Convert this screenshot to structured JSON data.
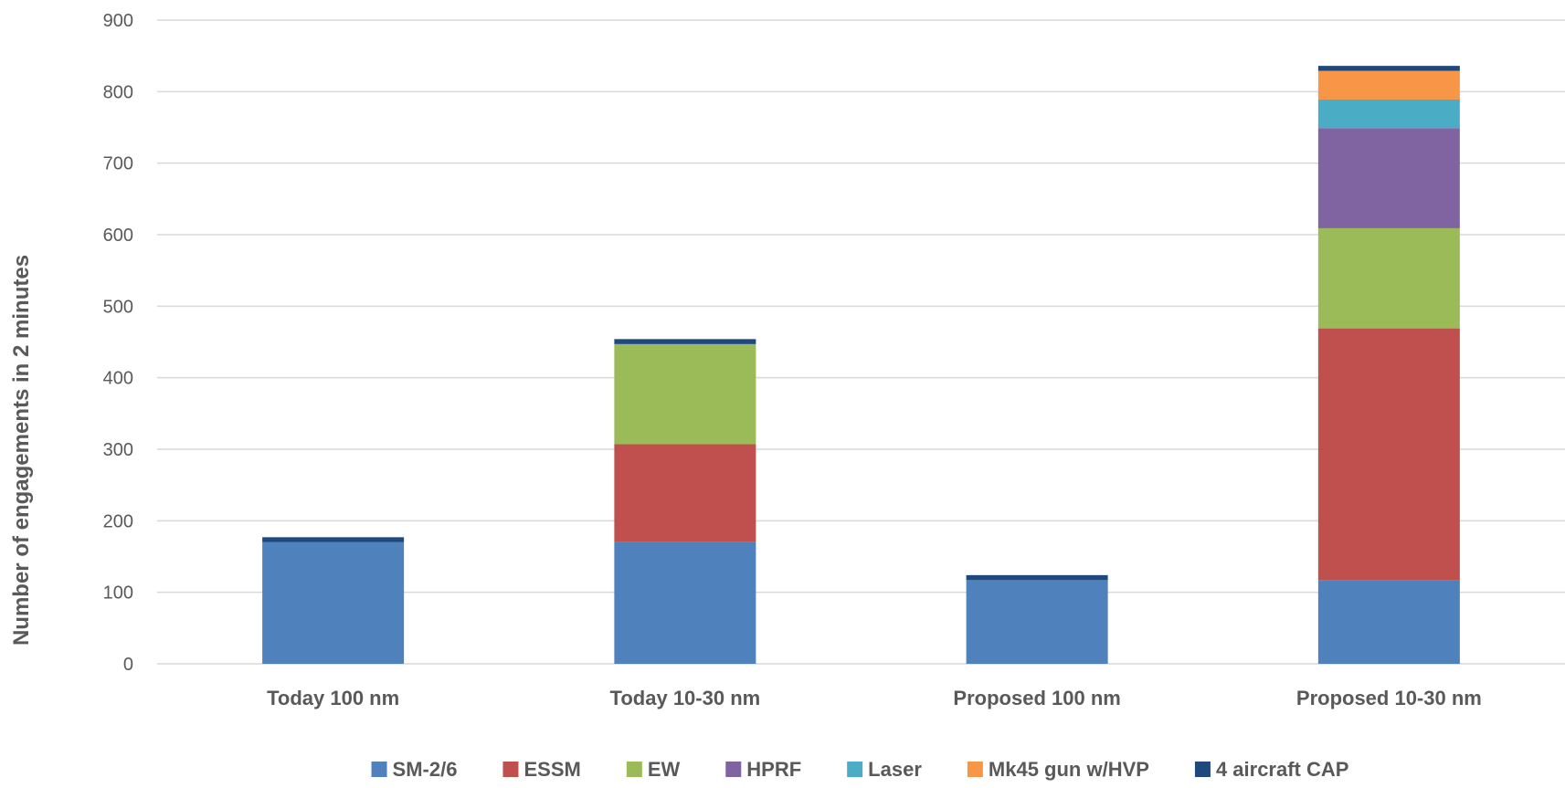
{
  "chart_data": {
    "type": "bar",
    "stacked": true,
    "title": "",
    "xlabel": "",
    "ylabel": "Number of engagements in 2 minutes",
    "ylim": [
      0,
      900
    ],
    "yticks": [
      0,
      100,
      200,
      300,
      400,
      500,
      600,
      700,
      800,
      900
    ],
    "grid": true,
    "legend_position": "bottom",
    "categories": [
      "Today 100 nm",
      "Today 10-30 nm",
      "Proposed 100 nm",
      "Proposed 10-30 nm"
    ],
    "series": [
      {
        "name": "SM-2/6",
        "color": "#4F81BD",
        "values": [
          170,
          170,
          117,
          117
        ]
      },
      {
        "name": "ESSM",
        "color": "#C0504D",
        "values": [
          0,
          137,
          0,
          352
        ]
      },
      {
        "name": "EW",
        "color": "#9BBB59",
        "values": [
          0,
          140,
          0,
          140
        ]
      },
      {
        "name": "HPRF",
        "color": "#8064A2",
        "values": [
          0,
          0,
          0,
          140
        ]
      },
      {
        "name": "Laser",
        "color": "#4BACC6",
        "values": [
          0,
          0,
          0,
          40
        ]
      },
      {
        "name": "Mk45 gun w/HVP",
        "color": "#F79646",
        "values": [
          0,
          0,
          0,
          40
        ]
      },
      {
        "name": "4 aircraft CAP",
        "color": "#1F497D",
        "values": [
          7,
          7,
          7,
          7
        ]
      }
    ]
  }
}
